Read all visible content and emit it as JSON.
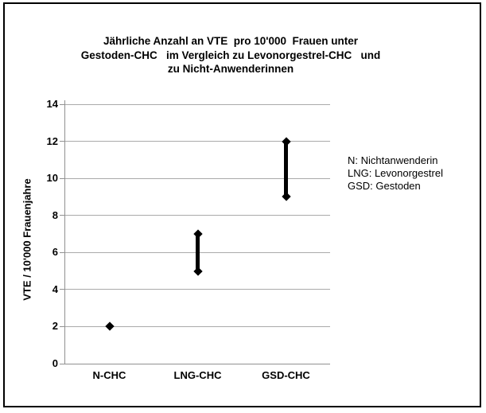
{
  "window": {
    "background_color": "#ffffff",
    "frame_border_color": "#000000"
  },
  "chart_data": {
    "type": "scatter",
    "subtype": "high-low-range-with-diamond-markers",
    "title": "Jährliche Anzahl an VTE  pro 10'000  Frauen unter\nGestoden-CHC   im Vergleich zu Levonorgestrel-CHC   und\nzu Nicht-Anwenderinnen",
    "ylabel": "VTE / 10'000 Frauenjahre",
    "xlabel": "",
    "categories": [
      "N-CHC",
      "LNG-CHC",
      "GSD-CHC"
    ],
    "series": [
      {
        "name": "low",
        "values": [
          2,
          5,
          9
        ]
      },
      {
        "name": "high",
        "values": [
          2,
          7,
          12
        ]
      }
    ],
    "points": [
      {
        "category": "N-CHC",
        "low": 2,
        "high": 2
      },
      {
        "category": "LNG-CHC",
        "low": 5,
        "high": 7
      },
      {
        "category": "GSD-CHC",
        "low": 9,
        "high": 12
      }
    ],
    "ylim": [
      0,
      14
    ],
    "y_ticks": [
      0,
      2,
      4,
      6,
      8,
      10,
      12,
      14
    ],
    "grid": true,
    "legend_position": "right",
    "marker": "diamond",
    "marker_color": "#000000",
    "gridline_color": "#aaaaaa",
    "axis_color": "#919191"
  },
  "annotation": {
    "lines": [
      "N: Nichtanwenderin",
      "LNG: Levonorgestrel",
      "GSD: Gestoden"
    ]
  }
}
